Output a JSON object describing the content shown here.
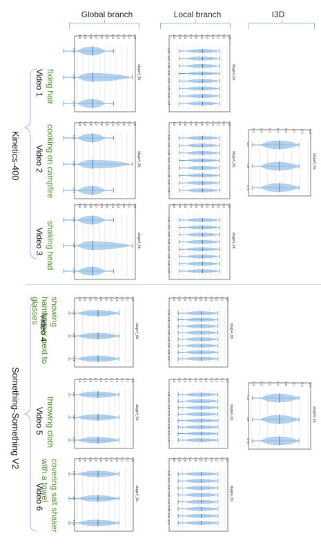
{
  "headers": {
    "global": "Global branch",
    "local": "Local branch",
    "i3d": "I3D"
  },
  "datasets": [
    {
      "name": "Kinetics-400",
      "videos": [
        {
          "label": "Video 1",
          "action": "fixing hair"
        },
        {
          "label": "Video 2",
          "action": "cooking on campfire"
        },
        {
          "label": "Video 3",
          "action": "shaking head"
        }
      ]
    },
    {
      "name": "Something-Something V2",
      "videos": [
        {
          "label": "Video 4",
          "action": "showing hamburger next to glasses"
        },
        {
          "label": "Video 5",
          "action": "throwing cloth"
        },
        {
          "label": "Video 6",
          "action": "covering salt shaker with a towel"
        }
      ]
    }
  ],
  "panel_titles": {
    "kinetics": "stage4_6b",
    "ssv2": "stage4_6b",
    "i3d": "stage4_6b"
  },
  "global_ticks_kinetics": [
    "1.0",
    "0.9",
    "0.8",
    "0.7",
    "0.6",
    "0.5",
    "0.4",
    "0.3",
    "0.2",
    "0.1",
    "0.0"
  ],
  "global_ticks_ssv2": [
    "1.0",
    "0.9",
    "0.8",
    "0.7",
    "0.6",
    "0.5",
    "0.4",
    "0.3",
    "0.2",
    "0.1",
    "0.0"
  ],
  "local_ticks": [
    "1.0",
    "0.9",
    "0.8",
    "0.7",
    "0.6",
    "0.5",
    "0.4",
    "0.3",
    "0.2",
    "0.1",
    "0.0"
  ],
  "i3d_ticks": [
    "0.4",
    "0.3",
    "0.2",
    "0.1",
    "0.0",
    "-0.1",
    "-0.2",
    "-0.3"
  ],
  "global_cats": [
    "t=1",
    "t=0",
    "t=-1"
  ],
  "local_cats": [
    "t=0",
    "t=1",
    "t=2",
    "t=3",
    "t=4",
    "t=5",
    "t=6",
    "t=7"
  ],
  "i3d_cats": [
    "t=1",
    "t=0",
    "t=-1"
  ],
  "chart_data": [
    {
      "type": "violin",
      "panel": "global-video1",
      "categories": [
        "t=1",
        "t=0",
        "t=-1"
      ],
      "medians": [
        0.5,
        0.5,
        0.5
      ]
    },
    {
      "type": "violin",
      "panel": "global-video2",
      "categories": [
        "t=1",
        "t=0",
        "t=-1"
      ],
      "medians": [
        0.5,
        0.5,
        0.5
      ]
    },
    {
      "type": "violin",
      "panel": "global-video3",
      "categories": [
        "t=1",
        "t=0",
        "t=-1"
      ],
      "medians": [
        0.5,
        0.5,
        0.5
      ]
    },
    {
      "type": "violin",
      "panel": "global-video4",
      "categories": [
        "t=1",
        "t=0",
        "t=-1"
      ],
      "medians": [
        0.45,
        0.5,
        0.45
      ]
    },
    {
      "type": "violin",
      "panel": "global-video5",
      "categories": [
        "t=1",
        "t=0",
        "t=-1"
      ],
      "medians": [
        0.45,
        0.5,
        0.45
      ]
    },
    {
      "type": "violin",
      "panel": "global-video6",
      "categories": [
        "t=1",
        "t=0",
        "t=-1"
      ],
      "medians": [
        0.45,
        0.5,
        0.45
      ]
    },
    {
      "type": "violin",
      "panel": "i3d-video2",
      "categories": [
        "t=1",
        "t=0",
        "t=-1"
      ],
      "medians": [
        0.0,
        0.0,
        0.0
      ]
    },
    {
      "type": "violin",
      "panel": "i3d-video5",
      "categories": [
        "t=1",
        "t=0",
        "t=-1"
      ],
      "medians": [
        0.0,
        0.0,
        0.0
      ]
    }
  ]
}
